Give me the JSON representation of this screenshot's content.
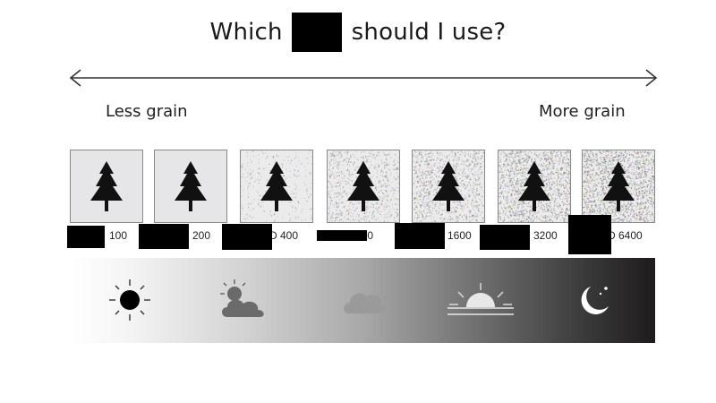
{
  "title": {
    "before": "Which",
    "after": "should I use?"
  },
  "scale": {
    "left_label": "Less grain",
    "right_label": "More grain"
  },
  "iso_values": [
    "100",
    "200",
    "400",
    "800",
    "1600",
    "3200",
    "6400"
  ],
  "iso_visible_text": [
    "100",
    "200",
    "D 400",
    "800",
    "1600",
    "3200",
    "D 6400"
  ],
  "conditions": [
    "sun-icon",
    "partly-cloudy-icon",
    "cloud-icon",
    "sunset-icon",
    "moon-stars-icon"
  ],
  "colors": {
    "text": "#1a1a1a",
    "band_light": "#ffffff",
    "band_dark": "#1e1b1c",
    "tile_bg": "#e6e6e8",
    "redaction": "#000000"
  }
}
